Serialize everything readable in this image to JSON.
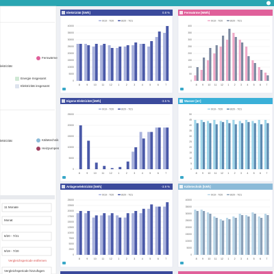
{
  "sidebar": {
    "fernwaerme": "Fernwärme",
    "elektrizitaet": "lektrizität",
    "energie_insgesamt": "Energie Insgesamt",
    "elektrizitaet_insgesamt": "Elektrizität insgesamt",
    "eigene": "lektrizität",
    "kaeltetechnik": "Kältetechnik",
    "heizpumpen": "Heizpumpen",
    "period_length": "11 Monate",
    "resolution": "Monat",
    "period": "8/20 - 7/21",
    "comparison": "9/19 - 7/20",
    "remove_comparison": "Vergleichsperiode entfernen",
    "add_comparison": "Vergleichsperiode hinzufügen"
  },
  "chart_data": [
    {
      "type": "bar",
      "title": "Elektrizität [kWh]",
      "badge": "0.8 %",
      "header_color": "#3b4a9c",
      "categories": [
        "8",
        "9",
        "10",
        "11",
        "12",
        "1",
        "2",
        "3",
        "4",
        "5",
        "6",
        "7"
      ],
      "series": [
        {
          "name": "9/19 - 7/20",
          "color": "#aab3dd",
          "values": [
            27000,
            27000,
            25000,
            26000,
            26000,
            24000,
            25000,
            26000,
            27000,
            25000,
            32000,
            35000
          ]
        },
        {
          "name": "8/20 - 7/21",
          "color": "#4a59a8",
          "values": [
            27000,
            26000,
            27000,
            27000,
            24000,
            25000,
            26000,
            28000,
            27000,
            29000,
            36000,
            40000
          ]
        }
      ],
      "ylim": [
        0,
        40000
      ],
      "yticks": [
        0,
        5000,
        10000,
        15000,
        20000,
        25000,
        30000,
        35000,
        40000
      ],
      "grid": true
    },
    {
      "type": "bar",
      "title": "Fernwärme [MWh]",
      "badge": null,
      "header_color": "#e0609a",
      "categories": [
        "8",
        "9",
        "10",
        "11",
        "12",
        "1",
        "2",
        "3",
        "4",
        "5",
        "6",
        "7"
      ],
      "series": [
        {
          "name": "9/19 - 7/20",
          "color": "#f0a9c8",
          "values": [
            40,
            80,
            150,
            200,
            250,
            300,
            350,
            300,
            250,
            150,
            100,
            60
          ]
        },
        {
          "name": "8/20 - 7/21",
          "color": "#7c89a0",
          "values": [
            100,
            170,
            240,
            260,
            330,
            380,
            320,
            280,
            180,
            130,
            80,
            40
          ]
        }
      ],
      "ylim": [
        0,
        400
      ],
      "yticks": [
        0,
        50,
        100,
        150,
        200,
        250,
        300,
        350,
        400
      ],
      "grid": true
    },
    {
      "type": "bar",
      "title": "Eigene Elektrizität [kWh]",
      "badge": "-3.5 %",
      "header_color": "#3b4a9c",
      "categories": [
        "8",
        "9",
        "10",
        "11",
        "12",
        "1",
        "2",
        "3",
        "4",
        "5",
        "6",
        "7"
      ],
      "series": [
        {
          "name": "9/19 - 7/20",
          "color": "#aab3dd",
          "values": [
            0,
            0,
            0,
            0,
            0,
            0,
            0,
            8000,
            17000,
            17000,
            19000,
            19000
          ]
        },
        {
          "name": "8/20 - 7/21",
          "color": "#4a59a8",
          "values": [
            20000,
            13000,
            3000,
            1500,
            500,
            1000,
            3500,
            10000,
            14000,
            17000,
            19000,
            19000
          ]
        }
      ],
      "ylim": [
        0,
        25000
      ],
      "yticks": [
        0,
        5000,
        10000,
        15000,
        20000,
        25000
      ],
      "grid": true
    },
    {
      "type": "bar",
      "title": "Wasser [m³]",
      "badge": null,
      "header_color": "#3ab0d8",
      "categories": [
        "8",
        "9",
        "10",
        "11",
        "12",
        "1",
        "2",
        "3",
        "4",
        "5",
        "6",
        "7"
      ],
      "series": [
        {
          "name": "9/19 - 7/20",
          "color": "#9fd6ea",
          "values": [
            45,
            45,
            44,
            45,
            44,
            45,
            45,
            44,
            45,
            44,
            45,
            45
          ]
        },
        {
          "name": "8/20 - 7/21",
          "color": "#5b89b0",
          "values": [
            42,
            43,
            42,
            41,
            43,
            42,
            41,
            42,
            43,
            42,
            41,
            42
          ]
        }
      ],
      "ylim": [
        0,
        50
      ],
      "yticks": [
        0,
        5,
        10,
        15,
        20,
        25,
        30,
        35,
        40,
        45,
        50
      ],
      "grid": true
    },
    {
      "type": "bar",
      "title": "Anlagenelektrizität [kWh]",
      "badge": "-3.9 %",
      "header_color": "#3b4a9c",
      "categories": [
        "8",
        "9",
        "10",
        "11",
        "12",
        "1",
        "2",
        "3",
        "4",
        "5",
        "6",
        "7"
      ],
      "series": [
        {
          "name": "9/19 - 7/20",
          "color": "#aab3dd",
          "values": [
            19000,
            19000,
            17000,
            18000,
            18000,
            18000,
            17000,
            19000,
            19000,
            21000,
            22000,
            22000
          ]
        },
        {
          "name": "8/20 - 7/21",
          "color": "#4a59a8",
          "values": [
            20000,
            20000,
            18000,
            19000,
            19000,
            17000,
            19000,
            20000,
            21000,
            23000,
            22000,
            24000
          ]
        }
      ],
      "ylim": [
        0,
        25000
      ],
      "yticks": [
        0,
        2500,
        5000,
        7500,
        10000,
        12500,
        15000,
        17500,
        20000,
        22500,
        25000
      ],
      "grid": true
    },
    {
      "type": "bar",
      "title": "Kältetechnik [kWh]",
      "badge": null,
      "header_color": "#8bbad8",
      "categories": [
        "8",
        "9",
        "10",
        "11",
        "12",
        "1",
        "2",
        "3",
        "4",
        "5",
        "6",
        "7"
      ],
      "series": [
        {
          "name": "9/19 - 7/20",
          "color": "#b9d6e8",
          "values": [
            33000,
            33000,
            31000,
            28000,
            26000,
            27000,
            28000,
            30000,
            29000,
            31000,
            28000,
            30000
          ]
        },
        {
          "name": "8/20 - 7/21",
          "color": "#8aa0b8",
          "values": [
            32000,
            32000,
            30000,
            27000,
            25000,
            26000,
            27000,
            29000,
            28000,
            30000,
            27000,
            29000
          ]
        }
      ],
      "ylim": [
        0,
        40000
      ],
      "yticks": [
        0,
        5000,
        10000,
        15000,
        20000,
        25000,
        30000,
        35000,
        40000
      ],
      "grid": true
    }
  ]
}
